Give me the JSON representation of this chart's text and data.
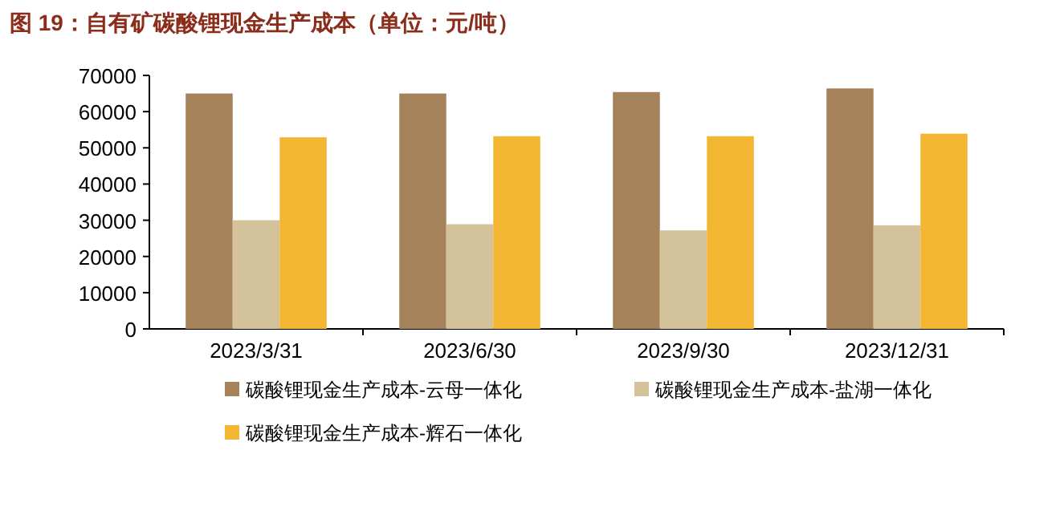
{
  "chart_data": {
    "type": "bar",
    "title": "图 19：自有矿碳酸锂现金生产成本（单位：元/吨）",
    "categories": [
      "2023/3/31",
      "2023/6/30",
      "2023/9/30",
      "2023/12/31"
    ],
    "series": [
      {
        "name": "碳酸锂现金生产成本-云母一体化",
        "color": "#a6825a",
        "values": [
          65000,
          65000,
          65400,
          66400
        ]
      },
      {
        "name": "碳酸锂现金生产成本-盐湖一体化",
        "color": "#d4c29a",
        "values": [
          30000,
          28900,
          27200,
          28600
        ]
      },
      {
        "name": "碳酸锂现金生产成本-辉石一体化",
        "color": "#f2b632",
        "values": [
          52900,
          53200,
          53200,
          53900
        ]
      }
    ],
    "ylim": [
      0,
      70000
    ],
    "yticks": [
      0,
      10000,
      20000,
      30000,
      40000,
      50000,
      60000,
      70000
    ],
    "grid": false,
    "legend": "bottom"
  }
}
